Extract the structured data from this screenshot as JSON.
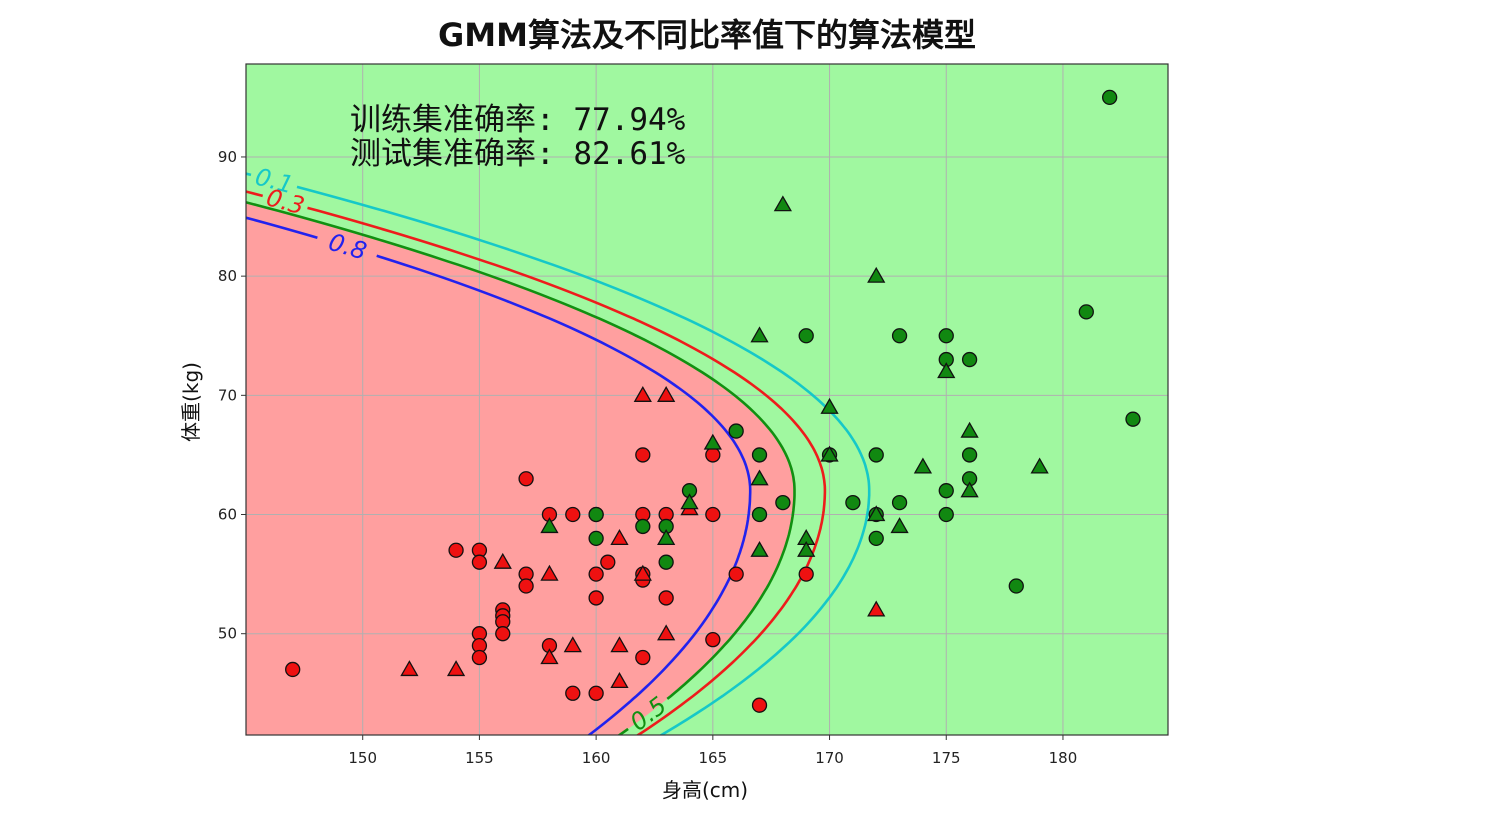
{
  "chart_data": {
    "type": "scatter",
    "title": "GMM算法及不同比率值下的算法模型",
    "xlabel": "身高(cm)",
    "ylabel": "体重(kg)",
    "xlim": [
      145,
      184.5
    ],
    "ylim": [
      41.5,
      97.8
    ],
    "xticks": [
      150,
      155,
      160,
      165,
      170,
      175,
      180
    ],
    "yticks": [
      50,
      60,
      70,
      80,
      90
    ],
    "grid": true,
    "annotations": [
      "训练集准确率: 77.94%",
      "测试集准确率: 82.61%"
    ],
    "regions": {
      "inner_color": "#ff9f9f",
      "outer_color": "#a0f8a0",
      "boundary_level": "0.5"
    },
    "contours": [
      {
        "label": "0.1",
        "color": "#16c8c8",
        "vertex": [
          171.7,
          62
        ],
        "top": [
          145,
          88.6
        ],
        "bottom": [
          162.8,
          41.5
        ]
      },
      {
        "label": "0.3",
        "color": "#ee1c1c",
        "vertex": [
          169.8,
          62
        ],
        "top": [
          145,
          87.1
        ],
        "bottom": [
          161.8,
          41.5
        ]
      },
      {
        "label": "0.5",
        "color": "#119011",
        "vertex": [
          168.5,
          62
        ],
        "top": [
          145,
          86.2
        ],
        "bottom": [
          161.0,
          41.5
        ]
      },
      {
        "label": "0.8",
        "color": "#2222ee",
        "vertex": [
          166.6,
          62
        ],
        "top": [
          145,
          84.9
        ],
        "bottom": [
          159.7,
          41.5
        ]
      }
    ],
    "series": [
      {
        "marker": "circle",
        "color": "#ee1111",
        "points": [
          [
            147,
            47
          ],
          [
            154,
            57
          ],
          [
            155,
            57
          ],
          [
            155,
            56
          ],
          [
            155,
            50
          ],
          [
            155,
            49
          ],
          [
            155,
            48
          ],
          [
            156,
            52
          ],
          [
            156,
            51.5
          ],
          [
            156,
            51
          ],
          [
            156,
            50
          ],
          [
            157,
            63
          ],
          [
            157,
            55
          ],
          [
            157,
            54
          ],
          [
            158,
            60
          ],
          [
            158,
            49
          ],
          [
            159,
            60
          ],
          [
            159,
            45
          ],
          [
            160,
            60
          ],
          [
            160,
            55
          ],
          [
            160,
            53
          ],
          [
            160,
            45
          ],
          [
            160.5,
            56
          ],
          [
            162,
            65
          ],
          [
            162,
            60
          ],
          [
            162,
            55
          ],
          [
            162,
            54.5
          ],
          [
            162,
            48
          ],
          [
            163,
            60
          ],
          [
            163,
            53
          ],
          [
            165,
            65
          ],
          [
            165,
            60
          ],
          [
            165,
            49.5
          ],
          [
            166,
            55
          ],
          [
            167,
            44
          ],
          [
            169,
            55
          ]
        ]
      },
      {
        "marker": "triangle",
        "color": "#ee1111",
        "points": [
          [
            152,
            47
          ],
          [
            154,
            47
          ],
          [
            156,
            56
          ],
          [
            158,
            55
          ],
          [
            158,
            48
          ],
          [
            159,
            49
          ],
          [
            161,
            58
          ],
          [
            161,
            49
          ],
          [
            161,
            46
          ],
          [
            162,
            70
          ],
          [
            162,
            55
          ],
          [
            163,
            70
          ],
          [
            163,
            50
          ],
          [
            164,
            60.5
          ],
          [
            172,
            52
          ]
        ]
      },
      {
        "marker": "circle",
        "color": "#118811",
        "points": [
          [
            160,
            60
          ],
          [
            160,
            58
          ],
          [
            162,
            59
          ],
          [
            163,
            59
          ],
          [
            163,
            56
          ],
          [
            164,
            62
          ],
          [
            166,
            67
          ],
          [
            167,
            65
          ],
          [
            167,
            60
          ],
          [
            168,
            61
          ],
          [
            169,
            75
          ],
          [
            170,
            65
          ],
          [
            171,
            61
          ],
          [
            172,
            65
          ],
          [
            172,
            60
          ],
          [
            172,
            58
          ],
          [
            173,
            75
          ],
          [
            173,
            61
          ],
          [
            175,
            75
          ],
          [
            175,
            73
          ],
          [
            175,
            62
          ],
          [
            175,
            60
          ],
          [
            176,
            73
          ],
          [
            176,
            65
          ],
          [
            176,
            63
          ],
          [
            178,
            54
          ],
          [
            181,
            77
          ],
          [
            182,
            95
          ],
          [
            183,
            68
          ]
        ]
      },
      {
        "marker": "triangle",
        "color": "#118811",
        "points": [
          [
            158,
            59
          ],
          [
            163,
            58
          ],
          [
            164,
            61
          ],
          [
            165,
            66
          ],
          [
            167,
            75
          ],
          [
            167,
            63
          ],
          [
            167,
            57
          ],
          [
            168,
            86
          ],
          [
            169,
            58
          ],
          [
            169,
            57
          ],
          [
            170,
            69
          ],
          [
            170,
            65
          ],
          [
            172,
            80
          ],
          [
            172,
            60
          ],
          [
            173,
            59
          ],
          [
            174,
            64
          ],
          [
            175,
            72
          ],
          [
            176,
            67
          ],
          [
            176,
            62
          ],
          [
            179,
            64
          ]
        ]
      }
    ]
  }
}
